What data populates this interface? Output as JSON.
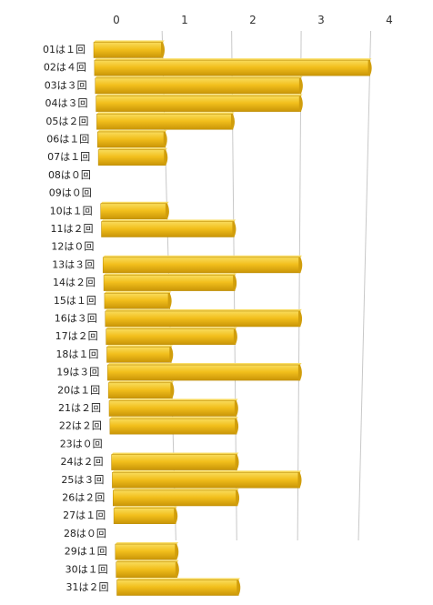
{
  "chart_data": {
    "type": "bar",
    "orientation": "horizontal",
    "style": "3d",
    "categories": [
      "01は１回",
      "02は４回",
      "03は３回",
      "04は３回",
      "05は２回",
      "06は１回",
      "07は１回",
      "08は０回",
      "09は０回",
      "10は１回",
      "11は２回",
      "12は０回",
      "13は３回",
      "14は２回",
      "15は１回",
      "16は３回",
      "17は２回",
      "18は１回",
      "19は３回",
      "20は１回",
      "21は２回",
      "22は２回",
      "23は０回",
      "24は２回",
      "25は３回",
      "26は２回",
      "27は１回",
      "28は０回",
      "29は１回",
      "30は１回",
      "31は２回"
    ],
    "values": [
      1,
      4,
      3,
      3,
      2,
      1,
      1,
      0,
      0,
      1,
      2,
      0,
      3,
      2,
      1,
      3,
      2,
      1,
      3,
      1,
      2,
      2,
      0,
      2,
      3,
      2,
      1,
      0,
      1,
      1,
      2
    ],
    "x_ticks": [
      "0",
      "1",
      "2",
      "3",
      "4"
    ],
    "xlim": [
      0,
      4
    ],
    "grid": true,
    "legend": "none",
    "colors": {
      "bar_front": "#f2bf1c",
      "bar_top": "#f6d24a",
      "bar_end": "#d19e0c",
      "gridline": "#c8c8c8"
    }
  }
}
